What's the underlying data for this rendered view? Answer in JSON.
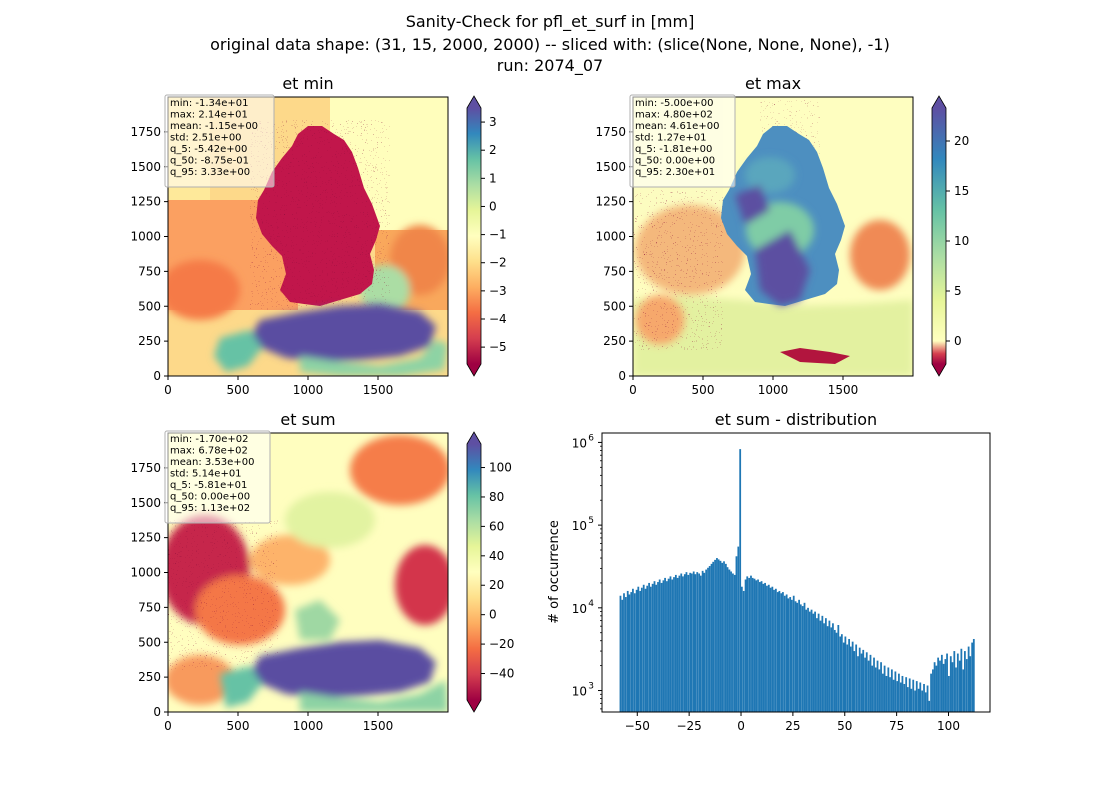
{
  "figure": {
    "title_lines": [
      "Sanity-Check for pfl_et_surf in [mm]",
      "original data shape: (31, 15, 2000, 2000) -- sliced with: (slice(None, None, None), -1)",
      "run: 2074_07"
    ]
  },
  "chart_data": [
    {
      "type": "heatmap",
      "title": "et min",
      "x_ticks": [
        0,
        500,
        1000,
        1500
      ],
      "y_ticks": [
        0,
        250,
        500,
        750,
        1000,
        1250,
        1500,
        1750
      ],
      "xlim": [
        0,
        2000
      ],
      "ylim": [
        0,
        2000
      ],
      "colormap": "Spectral",
      "colorbar": {
        "range": [
          -5.6,
          3.5
        ],
        "ticks": [
          3,
          2,
          1,
          0,
          -1,
          -2,
          -3,
          -4,
          -5
        ],
        "extend": "both"
      },
      "stats": [
        "min: -1.34e+01",
        "max: 2.14e+01",
        "mean: -1.15e+00",
        "std: 2.51e+00",
        "q_5: -5.42e+00",
        "q_50: -8.75e-01",
        "q_95: 3.33e+00"
      ]
    },
    {
      "type": "heatmap",
      "title": "et max",
      "x_ticks": [
        0,
        500,
        1000,
        1500
      ],
      "y_ticks": [
        0,
        250,
        500,
        750,
        1000,
        1250,
        1500,
        1750
      ],
      "xlim": [
        0,
        2000
      ],
      "ylim": [
        0,
        2000
      ],
      "colormap": "Spectral (diverging, centered at 0)",
      "colorbar": {
        "range": [
          -2.3,
          23.3
        ],
        "ticks": [
          20,
          15,
          10,
          5,
          0
        ],
        "extend": "both"
      },
      "stats": [
        "min: -5.00e+00",
        "max: 4.80e+02",
        "mean: 4.61e+00",
        "std: 1.27e+01",
        "q_5: -1.81e+00",
        "q_50: 0.00e+00",
        "q_95: 2.30e+01"
      ]
    },
    {
      "type": "heatmap",
      "title": "et sum",
      "x_ticks": [
        0,
        500,
        1000,
        1500
      ],
      "y_ticks": [
        0,
        250,
        500,
        750,
        1000,
        1250,
        1500,
        1750
      ],
      "xlim": [
        0,
        2000
      ],
      "ylim": [
        0,
        2000
      ],
      "colormap": "Spectral",
      "colorbar": {
        "range": [
          -58,
          116
        ],
        "ticks": [
          100,
          80,
          60,
          40,
          20,
          0,
          -20,
          -40
        ],
        "extend": "both"
      },
      "stats": [
        "min: -1.70e+02",
        "max: 6.78e+02",
        "mean: 3.53e+00",
        "std: 5.14e+01",
        "q_5: -5.81e+01",
        "q_50: 0.00e+00",
        "q_95: 1.13e+02"
      ]
    },
    {
      "type": "bar",
      "title": "et sum - distribution",
      "ylabel": "# of occurrence",
      "y_scale": "log",
      "xlim": [
        -67,
        120
      ],
      "ylim": [
        550,
        1300000
      ],
      "x_ticks": [
        -50,
        -25,
        0,
        25,
        50,
        75,
        100
      ],
      "x_tick_labels": [
        "−50",
        "−25",
        "0",
        "25",
        "50",
        "75",
        "100"
      ],
      "y_ticks": [
        1000,
        10000,
        100000,
        1000000
      ],
      "y_tick_labels": [
        "10",
        "10",
        "10",
        "10"
      ],
      "y_tick_exponents": [
        "3",
        "4",
        "5",
        "6"
      ],
      "bar_color": "#1f77b4",
      "bin_width": 0.86,
      "bins": [
        [
          -58.1,
          14000
        ],
        [
          -57.2,
          12500
        ],
        [
          -56.4,
          15000
        ],
        [
          -55.5,
          13500
        ],
        [
          -54.6,
          16000
        ],
        [
          -53.8,
          14500
        ],
        [
          -52.9,
          15500
        ],
        [
          -52.1,
          17000
        ],
        [
          -51.2,
          15000
        ],
        [
          -50.3,
          16500
        ],
        [
          -49.5,
          18000
        ],
        [
          -48.6,
          16000
        ],
        [
          -47.8,
          17500
        ],
        [
          -46.9,
          19000
        ],
        [
          -46.0,
          17000
        ],
        [
          -45.2,
          18500
        ],
        [
          -44.3,
          20000
        ],
        [
          -43.5,
          18000
        ],
        [
          -42.6,
          19500
        ],
        [
          -41.7,
          21000
        ],
        [
          -40.9,
          19000
        ],
        [
          -40.0,
          20500
        ],
        [
          -39.2,
          22000
        ],
        [
          -38.3,
          20000
        ],
        [
          -37.4,
          21500
        ],
        [
          -36.6,
          23000
        ],
        [
          -35.7,
          21000
        ],
        [
          -34.9,
          22500
        ],
        [
          -34.0,
          24000
        ],
        [
          -33.1,
          22000
        ],
        [
          -32.3,
          23500
        ],
        [
          -31.4,
          25000
        ],
        [
          -30.6,
          23000
        ],
        [
          -29.7,
          24500
        ],
        [
          -28.8,
          26000
        ],
        [
          -28.0,
          24000
        ],
        [
          -27.1,
          25500
        ],
        [
          -26.3,
          27000
        ],
        [
          -25.4,
          25000
        ],
        [
          -24.5,
          26500
        ],
        [
          -23.7,
          26000
        ],
        [
          -22.8,
          27500
        ],
        [
          -22.0,
          25500
        ],
        [
          -21.1,
          27000
        ],
        [
          -20.2,
          26000
        ],
        [
          -19.4,
          24500
        ],
        [
          -18.5,
          28000
        ],
        [
          -17.7,
          26500
        ],
        [
          -16.8,
          29000
        ],
        [
          -15.9,
          30500
        ],
        [
          -15.1,
          32000
        ],
        [
          -14.2,
          34000
        ],
        [
          -13.4,
          36000
        ],
        [
          -12.5,
          38000
        ],
        [
          -11.6,
          40000
        ],
        [
          -10.8,
          38500
        ],
        [
          -9.9,
          37000
        ],
        [
          -9.1,
          35000
        ],
        [
          -8.2,
          36500
        ],
        [
          -7.3,
          34000
        ],
        [
          -6.5,
          31000
        ],
        [
          -5.6,
          29000
        ],
        [
          -4.8,
          27500
        ],
        [
          -3.9,
          26000
        ],
        [
          -3.0,
          25000
        ],
        [
          -2.2,
          42000
        ],
        [
          -1.3,
          55000
        ],
        [
          -0.4,
          830000
        ],
        [
          0.4,
          18000
        ],
        [
          1.3,
          16000
        ],
        [
          2.2,
          22000
        ],
        [
          3.0,
          24000
        ],
        [
          3.9,
          23000
        ],
        [
          4.8,
          24500
        ],
        [
          5.6,
          23000
        ],
        [
          6.5,
          22500
        ],
        [
          7.3,
          21500
        ],
        [
          8.2,
          22000
        ],
        [
          9.1,
          20500
        ],
        [
          9.9,
          21000
        ],
        [
          10.8,
          19500
        ],
        [
          11.6,
          20000
        ],
        [
          12.5,
          18500
        ],
        [
          13.4,
          19000
        ],
        [
          14.2,
          17500
        ],
        [
          15.1,
          18000
        ],
        [
          15.9,
          16500
        ],
        [
          16.8,
          17000
        ],
        [
          17.7,
          15500
        ],
        [
          18.5,
          16000
        ],
        [
          19.4,
          15000
        ],
        [
          20.2,
          15500
        ],
        [
          21.1,
          14000
        ],
        [
          22.0,
          14500
        ],
        [
          22.8,
          13000
        ],
        [
          23.7,
          13500
        ],
        [
          24.5,
          12500
        ],
        [
          25.4,
          14000
        ],
        [
          26.3,
          12000
        ],
        [
          27.1,
          11500
        ],
        [
          28.0,
          12500
        ],
        [
          28.8,
          11000
        ],
        [
          29.7,
          10500
        ],
        [
          30.6,
          11500
        ],
        [
          31.4,
          9500
        ],
        [
          32.3,
          10000
        ],
        [
          33.1,
          9000
        ],
        [
          34.0,
          9500
        ],
        [
          34.9,
          8500
        ],
        [
          35.7,
          9000
        ],
        [
          36.6,
          7500
        ],
        [
          37.4,
          8500
        ],
        [
          38.3,
          7000
        ],
        [
          39.2,
          8000
        ],
        [
          40.0,
          6500
        ],
        [
          40.9,
          7500
        ],
        [
          41.7,
          6000
        ],
        [
          42.6,
          7000
        ],
        [
          43.5,
          5800
        ],
        [
          44.3,
          6500
        ],
        [
          45.2,
          5400
        ],
        [
          46.0,
          5000
        ],
        [
          46.9,
          6200
        ],
        [
          47.8,
          4500
        ],
        [
          48.6,
          4800
        ],
        [
          49.5,
          3800
        ],
        [
          50.3,
          4500
        ],
        [
          51.2,
          3600
        ],
        [
          52.1,
          4200
        ],
        [
          52.9,
          3400
        ],
        [
          53.8,
          3900
        ],
        [
          54.6,
          3000
        ],
        [
          55.5,
          3600
        ],
        [
          56.4,
          2600
        ],
        [
          57.2,
          3300
        ],
        [
          58.1,
          2800
        ],
        [
          58.9,
          3100
        ],
        [
          59.8,
          2500
        ],
        [
          60.6,
          2900
        ],
        [
          61.5,
          2300
        ],
        [
          62.4,
          2700
        ],
        [
          63.2,
          2000
        ],
        [
          64.1,
          2500
        ],
        [
          64.9,
          1900
        ],
        [
          65.8,
          2300
        ],
        [
          66.7,
          1800
        ],
        [
          67.5,
          2200
        ],
        [
          68.4,
          1600
        ],
        [
          69.2,
          2000
        ],
        [
          70.1,
          1500
        ],
        [
          71.0,
          1900
        ],
        [
          71.8,
          1450
        ],
        [
          72.7,
          1800
        ],
        [
          73.5,
          1350
        ],
        [
          74.4,
          1700
        ],
        [
          75.3,
          1300
        ],
        [
          76.1,
          1600
        ],
        [
          77.0,
          1250
        ],
        [
          77.8,
          1500
        ],
        [
          78.7,
          1200
        ],
        [
          79.6,
          1450
        ],
        [
          80.4,
          1100
        ],
        [
          81.3,
          1400
        ],
        [
          82.1,
          1050
        ],
        [
          83.0,
          1350
        ],
        [
          83.9,
          1000
        ],
        [
          84.7,
          1300
        ],
        [
          85.6,
          1050
        ],
        [
          86.4,
          1250
        ],
        [
          87.3,
          1000
        ],
        [
          88.2,
          1200
        ],
        [
          89.0,
          950
        ],
        [
          89.9,
          1150
        ],
        [
          90.7,
          750
        ],
        [
          91.6,
          1600
        ],
        [
          92.5,
          1800
        ],
        [
          93.3,
          2200
        ],
        [
          94.2,
          2000
        ],
        [
          95.0,
          2500
        ],
        [
          95.9,
          2300
        ],
        [
          96.8,
          2700
        ],
        [
          97.6,
          2100
        ],
        [
          98.5,
          2400
        ],
        [
          99.3,
          2800
        ],
        [
          100.2,
          1500
        ],
        [
          101.1,
          2600
        ],
        [
          101.9,
          2200
        ],
        [
          102.8,
          3000
        ],
        [
          103.6,
          1900
        ],
        [
          104.5,
          2800
        ],
        [
          105.4,
          2300
        ],
        [
          106.2,
          3200
        ],
        [
          107.1,
          1800
        ],
        [
          107.9,
          3000
        ],
        [
          108.8,
          2400
        ],
        [
          109.7,
          3400
        ],
        [
          110.5,
          2600
        ],
        [
          111.4,
          3800
        ],
        [
          112.2,
          4200
        ]
      ]
    }
  ]
}
